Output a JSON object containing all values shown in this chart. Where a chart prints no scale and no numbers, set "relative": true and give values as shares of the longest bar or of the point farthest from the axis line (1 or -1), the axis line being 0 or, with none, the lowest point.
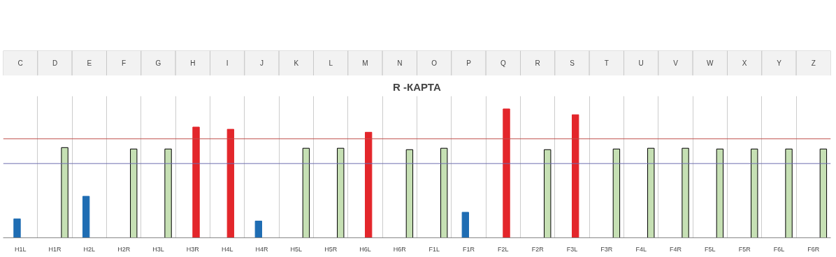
{
  "chart_data": {
    "type": "bar",
    "title": "R -КАРТА",
    "relative": true,
    "grid": "x",
    "categories": [
      "H1L",
      "H1R",
      "H2L",
      "H2R",
      "H3L",
      "H3R",
      "H4L",
      "H4R",
      "H5L",
      "H5R",
      "H6L",
      "H6R",
      "F1L",
      "F1R",
      "F2L",
      "F2R",
      "F3L",
      "F3R",
      "F4L",
      "F4R",
      "F5L",
      "F5R",
      "F6L",
      "F6R"
    ],
    "series": [
      {
        "color": "#1f6db3",
        "values": [
          0.147,
          null,
          0.322,
          null,
          null,
          null,
          null,
          0.13,
          null,
          null,
          null,
          null,
          null,
          0.198,
          null,
          null,
          null,
          null,
          null,
          null,
          null,
          null,
          null,
          null
        ]
      },
      {
        "color": "#e3262b",
        "values": [
          null,
          null,
          null,
          null,
          null,
          0.859,
          0.842,
          null,
          null,
          null,
          0.819,
          null,
          null,
          null,
          1,
          null,
          0.955,
          null,
          null,
          null,
          null,
          null,
          null,
          null
        ]
      },
      {
        "color": "#c6e0b4",
        "values": [
          null,
          0.7,
          null,
          0.689,
          0.689,
          null,
          null,
          null,
          0.695,
          0.695,
          null,
          0.684,
          0.695,
          null,
          null,
          0.684,
          null,
          0.689,
          0.695,
          0.695,
          0.689,
          0.689,
          0.689,
          0.689
        ]
      }
    ],
    "ref_lines": [
      {
        "axis": "y",
        "value": 0.768,
        "color": "#c0504d"
      },
      {
        "axis": "y",
        "value": 0.576,
        "color": "#6f6fb0"
      }
    ],
    "annotations": [
      "C",
      "D",
      "E",
      "F",
      "G",
      "H",
      "I",
      "J",
      "K",
      "L",
      "M",
      "N",
      "O",
      "P",
      "Q",
      "R",
      "S",
      "T",
      "U",
      "V",
      "W",
      "X",
      "Y",
      "Z"
    ]
  }
}
